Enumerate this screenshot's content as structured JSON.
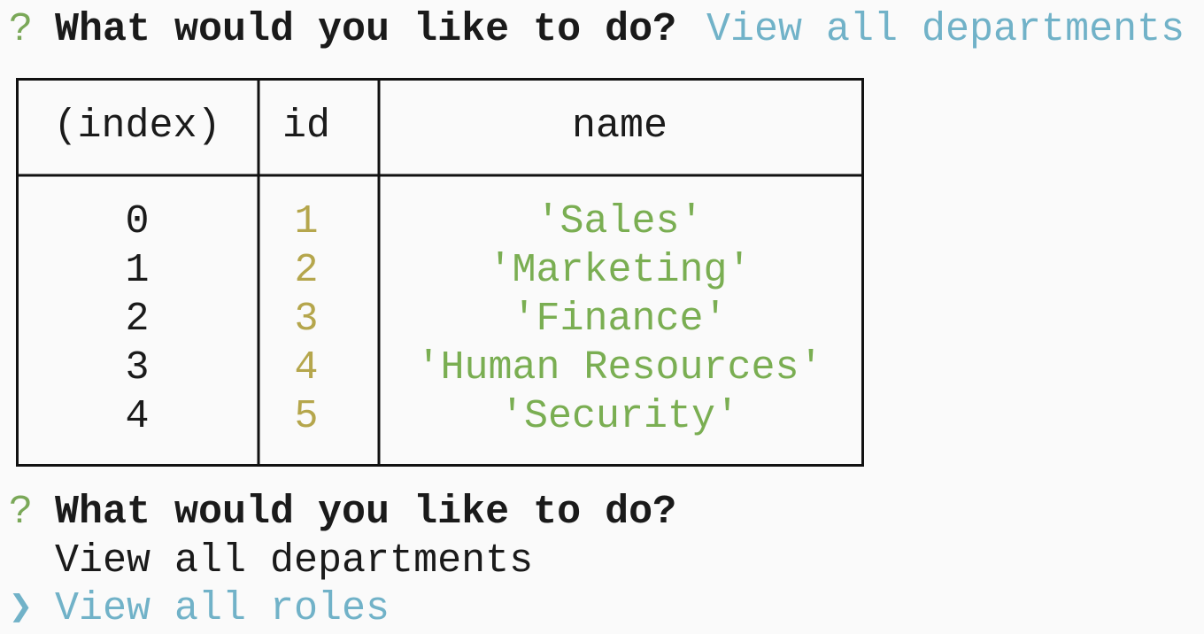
{
  "prompt_1": {
    "marker": "?",
    "question": "What would you like to do?",
    "answer": "View all departments"
  },
  "table": {
    "headers": [
      "(index)",
      "id",
      "name"
    ],
    "rows": [
      [
        0,
        1,
        "'Sales'"
      ],
      [
        1,
        2,
        "'Marketing'"
      ],
      [
        2,
        3,
        "'Finance'"
      ],
      [
        3,
        4,
        "'Human Resources'"
      ],
      [
        4,
        5,
        "'Security'"
      ]
    ]
  },
  "prompt_2": {
    "marker": "?",
    "question": "What would you like to do?",
    "choices": [
      "View all departments",
      "View all roles"
    ],
    "pointer": "❯"
  }
}
